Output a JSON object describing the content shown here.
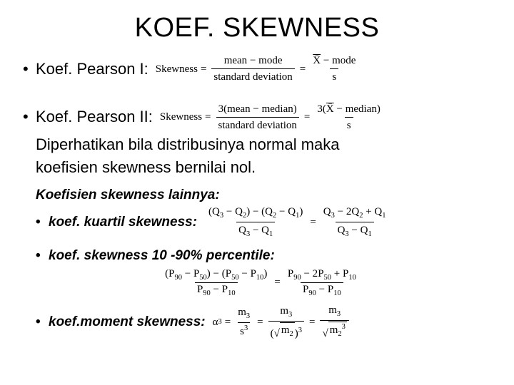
{
  "title": "KOEF. SKEWNESS",
  "pearson1_label": "Koef. Pearson I:",
  "pearson2_label": "Koef. Pearson II:",
  "note_line1": "Diperhatikan bila distribusinya normal maka",
  "note_line2": "koefisien skewness bernilai nol.",
  "sub_heading": "Koefisien skewness lainnya:",
  "sub_quartile": "koef. kuartil skewness:",
  "sub_percentile": "koef. skewness 10 -90% percentile:",
  "sub_moment": "koef.moment skewness:",
  "f": {
    "skew": "Skewness",
    "mean": "mean",
    "mode": "mode",
    "median": "median",
    "stddev": "standard deviation",
    "xbar": "X̄",
    "s": "s",
    "three": "3",
    "q1": "Q",
    "q1s": "1",
    "q2": "Q",
    "q2s": "2",
    "q3": "Q",
    "q3s": "3",
    "p10": "P",
    "p10s": "10",
    "p50": "P",
    "p50s": "50",
    "p90": "P",
    "p90s": "90",
    "alpha3": "α",
    "alpha3s": "3",
    "m2": "m",
    "m2s": "2",
    "m3": "m",
    "m3s": "3",
    "two": "2"
  },
  "style": {
    "title_fontsize": 38,
    "body_fontsize": 22,
    "sub_fontsize": 19,
    "formula_fontsize": 15,
    "text_color": "#000000",
    "background_color": "#ffffff"
  }
}
